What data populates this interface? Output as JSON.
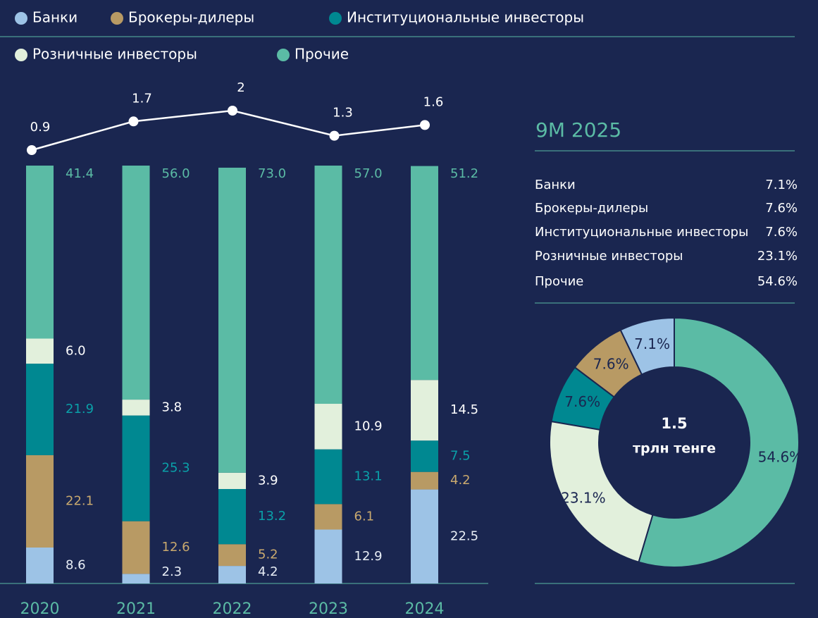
{
  "chart_data": [
    {
      "type": "bar",
      "stacked": true,
      "categories": [
        "2020",
        "2021",
        "2022",
        "2023",
        "2024"
      ],
      "ylim": [
        0,
        100
      ],
      "series": [
        {
          "name": "Банки",
          "color": "#9dc3e6",
          "label_color": "#e8eef6",
          "values": [
            8.6,
            2.3,
            4.2,
            12.9,
            22.5
          ],
          "value_labels": [
            "8.6",
            "2.3",
            "4.2",
            "12.9",
            "22.5"
          ]
        },
        {
          "name": "Брокеры-дилеры",
          "color": "#b89a64",
          "label_color": "#c9a96e",
          "values": [
            22.1,
            12.6,
            5.2,
            6.1,
            4.2
          ],
          "value_labels": [
            "22.1",
            "12.6",
            "5.2",
            "6.1",
            "4.2"
          ]
        },
        {
          "name": "Институциональные инвесторы",
          "color": "#008891",
          "label_color": "#0aa0a8",
          "values": [
            21.9,
            25.3,
            13.2,
            13.1,
            7.5
          ],
          "value_labels": [
            "21.9",
            "25.3",
            "13.2",
            "13.1",
            "7.5"
          ]
        },
        {
          "name": "Розничные инвесторы",
          "color": "#e2f0dc",
          "label_color": "#ffffff",
          "values": [
            6.0,
            3.8,
            3.9,
            10.9,
            14.5
          ],
          "value_labels": [
            "6.0",
            "3.8",
            "3.9",
            "10.9",
            "14.5"
          ]
        },
        {
          "name": "Прочие",
          "color": "#5bbba5",
          "label_color": "#5bbba5",
          "values": [
            41.4,
            56.0,
            73.0,
            57.0,
            51.2
          ],
          "value_labels": [
            "41.4",
            "56.0",
            "73.0",
            "57.0",
            "51.2"
          ]
        }
      ],
      "line": {
        "color": "#ffffff",
        "values": [
          0.9,
          1.7,
          2,
          1.3,
          1.6
        ]
      }
    },
    {
      "type": "pie",
      "donut": true,
      "title": "9M 2025",
      "center_value": "1.5",
      "center_label": "трлн тенге",
      "categories": [
        "Банки",
        "Брокеры-дилеры",
        "Институциональные инвесторы",
        "Розничные инвесторы",
        "Прочие"
      ],
      "colors": [
        "#9dc3e6",
        "#b89a64",
        "#008891",
        "#e2f0dc",
        "#5bbba5"
      ],
      "values": [
        7.1,
        7.6,
        7.6,
        23.1,
        54.6
      ],
      "value_labels": [
        "7.1%",
        "7.6%",
        "7.6%",
        "23.1%",
        "54.6%"
      ]
    }
  ]
}
